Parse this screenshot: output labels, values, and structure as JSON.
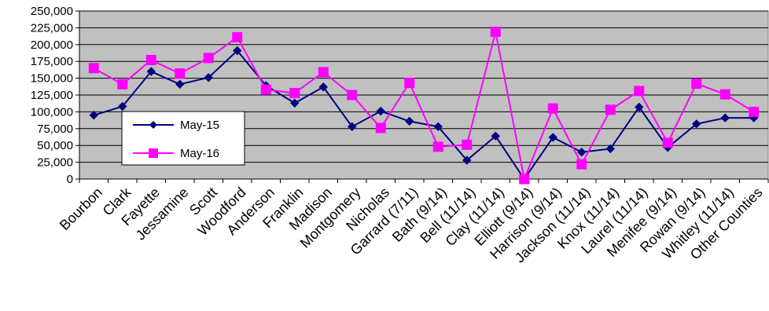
{
  "chart_data": {
    "type": "line",
    "title": "",
    "xlabel": "",
    "ylabel": "",
    "ylim": [
      0,
      250000
    ],
    "yticks": [
      0,
      25000,
      50000,
      75000,
      100000,
      125000,
      150000,
      175000,
      200000,
      225000,
      250000
    ],
    "ytick_labels": [
      "0",
      "25,000",
      "50,000",
      "75,000",
      "100,000",
      "125,000",
      "150,000",
      "175,000",
      "200,000",
      "225,000",
      "250,000"
    ],
    "grid": true,
    "plot_background": "#c0c0c0",
    "legend_position": "center-left",
    "categories": [
      "Bourbon",
      "Clark",
      "Fayette",
      "Jessamine",
      "Scott",
      "Woodford",
      "Anderson",
      "Franklin",
      "Madison",
      "Montgomery",
      "Nicholas",
      "Garrard (7/11)",
      "Bath (9/14)",
      "Bell (11/14)",
      "Clay (11/14)",
      "Elliott (9/14)",
      "Harrison (9/14)",
      "Jackson (11/14)",
      "Knox (11/14)",
      "Laurel (11/14)",
      "Menifee (9/14)",
      "Rowan (9/14)",
      "Whitley (11/14)",
      "Other Counties"
    ],
    "series": [
      {
        "name": "May-15",
        "color": "#000080",
        "marker": "diamond",
        "values": [
          95000,
          108000,
          160000,
          141000,
          151000,
          191000,
          139000,
          113000,
          137000,
          78000,
          101000,
          86000,
          78000,
          28000,
          64000,
          0,
          62000,
          40000,
          45000,
          107000,
          47000,
          82000,
          91000,
          91000
        ]
      },
      {
        "name": "May-16",
        "color": "#ff00ff",
        "marker": "square",
        "values": [
          165000,
          141000,
          177000,
          157000,
          180000,
          211000,
          133000,
          128000,
          159000,
          125000,
          76000,
          143000,
          48000,
          51000,
          219000,
          0,
          105000,
          22000,
          103000,
          131000,
          54000,
          142000,
          126000,
          100000
        ]
      }
    ]
  }
}
